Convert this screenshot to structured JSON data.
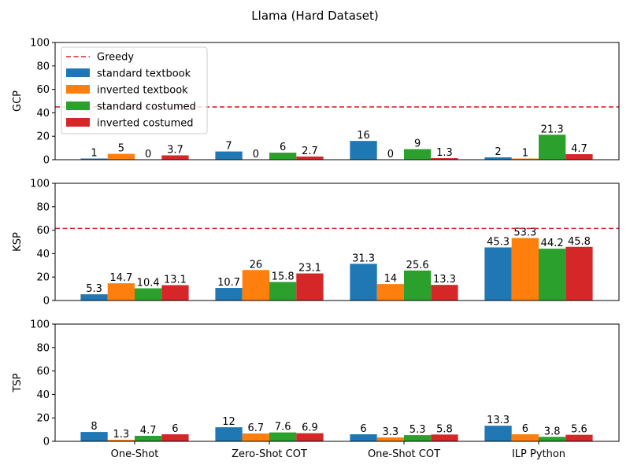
{
  "chart_data": {
    "type": "bar",
    "title": "Llama (Hard Dataset)",
    "categories": [
      "One-Shot",
      "Zero-Shot COT",
      "One-Shot COT",
      "ILP Python"
    ],
    "series_names": [
      "standard textbook",
      "inverted textbook",
      "standard costumed",
      "inverted costumed"
    ],
    "colors": [
      "#1f77b4",
      "#ff7f0e",
      "#2ca02c",
      "#d62728"
    ],
    "greedy": {
      "label": "Greedy",
      "color": "#d62728"
    },
    "legend_position": "upper-left of first panel",
    "panels": [
      {
        "ylabel": "GCP",
        "ylim": [
          0,
          100
        ],
        "yticks": [
          "0",
          "20",
          "40",
          "60",
          "80",
          "100"
        ],
        "greedy_value": 45,
        "show_legend": true,
        "series": [
          {
            "name": "standard textbook",
            "values": [
              1,
              7,
              16,
              2
            ],
            "labels": [
              "1",
              "7",
              "16",
              "2"
            ]
          },
          {
            "name": "inverted textbook",
            "values": [
              5,
              0,
              0,
              1
            ],
            "labels": [
              "5",
              "0",
              "0",
              "1"
            ]
          },
          {
            "name": "standard costumed",
            "values": [
              0,
              6,
              9,
              21.3
            ],
            "labels": [
              "0",
              "6",
              "9",
              "21.3"
            ]
          },
          {
            "name": "inverted costumed",
            "values": [
              3.7,
              2.7,
              1.3,
              4.7
            ],
            "labels": [
              "3.7",
              "2.7",
              "1.3",
              "4.7"
            ]
          }
        ]
      },
      {
        "ylabel": "KSP",
        "ylim": [
          0,
          100
        ],
        "yticks": [
          "0",
          "20",
          "40",
          "60",
          "80",
          "100"
        ],
        "greedy_value": 61.5,
        "show_legend": false,
        "series": [
          {
            "name": "standard textbook",
            "values": [
              5.3,
              10.7,
              31.3,
              45.3
            ],
            "labels": [
              "5.3",
              "10.7",
              "31.3",
              "45.3"
            ]
          },
          {
            "name": "inverted textbook",
            "values": [
              14.7,
              26,
              14,
              53.3
            ],
            "labels": [
              "14.7",
              "26",
              "14",
              "53.3"
            ]
          },
          {
            "name": "standard costumed",
            "values": [
              10.4,
              15.8,
              25.6,
              44.2
            ],
            "labels": [
              "10.4",
              "15.8",
              "25.6",
              "44.2"
            ]
          },
          {
            "name": "inverted costumed",
            "values": [
              13.1,
              23.1,
              13.3,
              45.8
            ],
            "labels": [
              "13.1",
              "23.1",
              "13.3",
              "45.8"
            ]
          }
        ]
      },
      {
        "ylabel": "TSP",
        "ylim": [
          0,
          100
        ],
        "yticks": [
          "0",
          "20",
          "40",
          "60",
          "80",
          "100"
        ],
        "greedy_value": null,
        "show_legend": false,
        "series": [
          {
            "name": "standard textbook",
            "values": [
              8,
              12,
              6,
              13.3
            ],
            "labels": [
              "8",
              "12",
              "6",
              "13.3"
            ]
          },
          {
            "name": "inverted textbook",
            "values": [
              1.3,
              6.7,
              3.3,
              6
            ],
            "labels": [
              "1.3",
              "6.7",
              "3.3",
              "6"
            ]
          },
          {
            "name": "standard costumed",
            "values": [
              4.7,
              7.6,
              5.3,
              3.8
            ],
            "labels": [
              "4.7",
              "7.6",
              "5.3",
              "3.8"
            ]
          },
          {
            "name": "inverted costumed",
            "values": [
              6,
              6.9,
              5.8,
              5.6
            ],
            "labels": [
              "6",
              "6.9",
              "5.8",
              "5.6"
            ]
          }
        ]
      }
    ]
  }
}
